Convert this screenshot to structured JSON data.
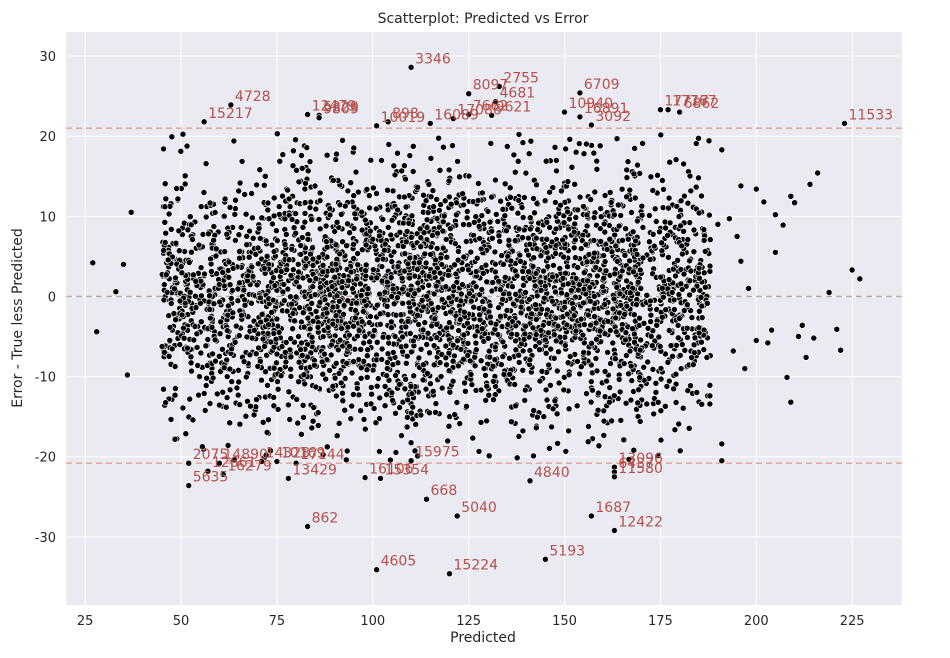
{
  "chart_data": {
    "type": "scatter",
    "title": "Scatterplot: Predicted vs Error",
    "xlabel": "Predicted",
    "ylabel": "Error - True less Predicted",
    "xlim": [
      20,
      238
    ],
    "ylim": [
      -38.5,
      33
    ],
    "x_ticks": [
      "25",
      "50",
      "75",
      "100",
      "125",
      "150",
      "175",
      "200",
      "225"
    ],
    "y_ticks": [
      "30",
      "20",
      "10",
      "0",
      "-10",
      "-20",
      "-30"
    ],
    "grid": true,
    "background": "#eaeaf2",
    "point_color": "#000000",
    "point_edge": "#ffffff",
    "reference_lines": [
      {
        "y": 21.0,
        "style": "dashed",
        "color": "#e8a090"
      },
      {
        "y": 0.0,
        "style": "dashed",
        "color": "#c0a8a0"
      },
      {
        "y": -20.8,
        "style": "dashed",
        "color": "#e8a090"
      }
    ],
    "annotations": [
      {
        "x": 110,
        "y": 28.6,
        "label": "3346"
      },
      {
        "x": 125,
        "y": 25.3,
        "label": "8097"
      },
      {
        "x": 133,
        "y": 26.2,
        "label": "2755"
      },
      {
        "x": 154,
        "y": 25.4,
        "label": "6709"
      },
      {
        "x": 63,
        "y": 23.9,
        "label": "4728"
      },
      {
        "x": 56,
        "y": 21.8,
        "label": "15217"
      },
      {
        "x": 83,
        "y": 22.7,
        "label": "12479"
      },
      {
        "x": 86,
        "y": 22.6,
        "label": "5329"
      },
      {
        "x": 86,
        "y": 22.3,
        "label": "9809"
      },
      {
        "x": 101,
        "y": 21.3,
        "label": "10019"
      },
      {
        "x": 104,
        "y": 21.8,
        "label": "898"
      },
      {
        "x": 115,
        "y": 21.6,
        "label": "16089"
      },
      {
        "x": 121,
        "y": 22.2,
        "label": "17086"
      },
      {
        "x": 125,
        "y": 22.7,
        "label": "7662"
      },
      {
        "x": 131,
        "y": 22.6,
        "label": "9621"
      },
      {
        "x": 132,
        "y": 24.3,
        "label": "4681"
      },
      {
        "x": 150,
        "y": 23.0,
        "label": "10940"
      },
      {
        "x": 154,
        "y": 22.4,
        "label": "16891"
      },
      {
        "x": 157,
        "y": 21.4,
        "label": "3092"
      },
      {
        "x": 175,
        "y": 23.3,
        "label": "17717"
      },
      {
        "x": 177,
        "y": 23.3,
        "label": "17767"
      },
      {
        "x": 180,
        "y": 23.0,
        "label": "6862"
      },
      {
        "x": 223,
        "y": 21.6,
        "label": "11533"
      },
      {
        "x": 52,
        "y": -20.8,
        "label": "2075"
      },
      {
        "x": 60,
        "y": -20.8,
        "label": "14890"
      },
      {
        "x": 57,
        "y": -21.8,
        "label": "12661"
      },
      {
        "x": 61,
        "y": -22.2,
        "label": "16279"
      },
      {
        "x": 52,
        "y": -23.6,
        "label": "5635"
      },
      {
        "x": 71,
        "y": -20.6,
        "label": "14323"
      },
      {
        "x": 75,
        "y": -20.6,
        "label": "10169"
      },
      {
        "x": 80,
        "y": -20.8,
        "label": "17144"
      },
      {
        "x": 78,
        "y": -22.7,
        "label": "13429"
      },
      {
        "x": 98,
        "y": -22.6,
        "label": "16106"
      },
      {
        "x": 102,
        "y": -22.7,
        "label": "15354"
      },
      {
        "x": 110,
        "y": -20.5,
        "label": "15975"
      },
      {
        "x": 141,
        "y": -23.0,
        "label": "4840"
      },
      {
        "x": 163,
        "y": -21.3,
        "label": "13096"
      },
      {
        "x": 163,
        "y": -21.9,
        "label": "6437"
      },
      {
        "x": 163,
        "y": -22.5,
        "label": "11580"
      },
      {
        "x": 114,
        "y": -25.3,
        "label": "668"
      },
      {
        "x": 122,
        "y": -27.4,
        "label": "5040"
      },
      {
        "x": 157,
        "y": -27.4,
        "label": "1687"
      },
      {
        "x": 163,
        "y": -29.2,
        "label": "12422"
      },
      {
        "x": 83,
        "y": -28.7,
        "label": "862"
      },
      {
        "x": 145,
        "y": -32.8,
        "label": "5193"
      },
      {
        "x": 101,
        "y": -34.1,
        "label": "4605"
      },
      {
        "x": 120,
        "y": -34.6,
        "label": "15224"
      }
    ],
    "sparse_points": [
      [
        27,
        4.2
      ],
      [
        28,
        -4.4
      ],
      [
        33,
        0.6
      ],
      [
        35,
        4.0
      ],
      [
        36,
        -9.8
      ],
      [
        37,
        10.5
      ],
      [
        200,
        13.4
      ],
      [
        200,
        -5.5
      ],
      [
        202,
        11.8
      ],
      [
        204,
        -4.2
      ],
      [
        205,
        10.2
      ],
      [
        207,
        8.9
      ],
      [
        208,
        -10.1
      ],
      [
        210,
        11.7
      ],
      [
        211,
        -5.0
      ],
      [
        213,
        -7.6
      ],
      [
        214,
        14.0
      ],
      [
        215,
        -5.2
      ],
      [
        216,
        15.4
      ],
      [
        219,
        0.5
      ],
      [
        221,
        -4.1
      ],
      [
        222,
        -6.7
      ],
      [
        225,
        3.3
      ],
      [
        227,
        2.2
      ],
      [
        209,
        -13.2
      ],
      [
        197,
        -9.0
      ],
      [
        194,
        -6.8
      ],
      [
        196,
        13.8
      ],
      [
        191,
        18.3
      ],
      [
        191,
        -18.4
      ],
      [
        191,
        -20.5
      ],
      [
        185,
        -3.9
      ],
      [
        188,
        7.1
      ],
      [
        190,
        9.0
      ],
      [
        193,
        9.7
      ],
      [
        195,
        7.5
      ],
      [
        196,
        4.4
      ],
      [
        198,
        1.0
      ],
      [
        203,
        -5.8
      ],
      [
        205,
        5.5
      ],
      [
        209,
        12.5
      ],
      [
        212,
        -3.6
      ]
    ],
    "cluster": {
      "description_points": 4000,
      "x_range": [
        45,
        188
      ],
      "y_sd": 7.5
    }
  }
}
